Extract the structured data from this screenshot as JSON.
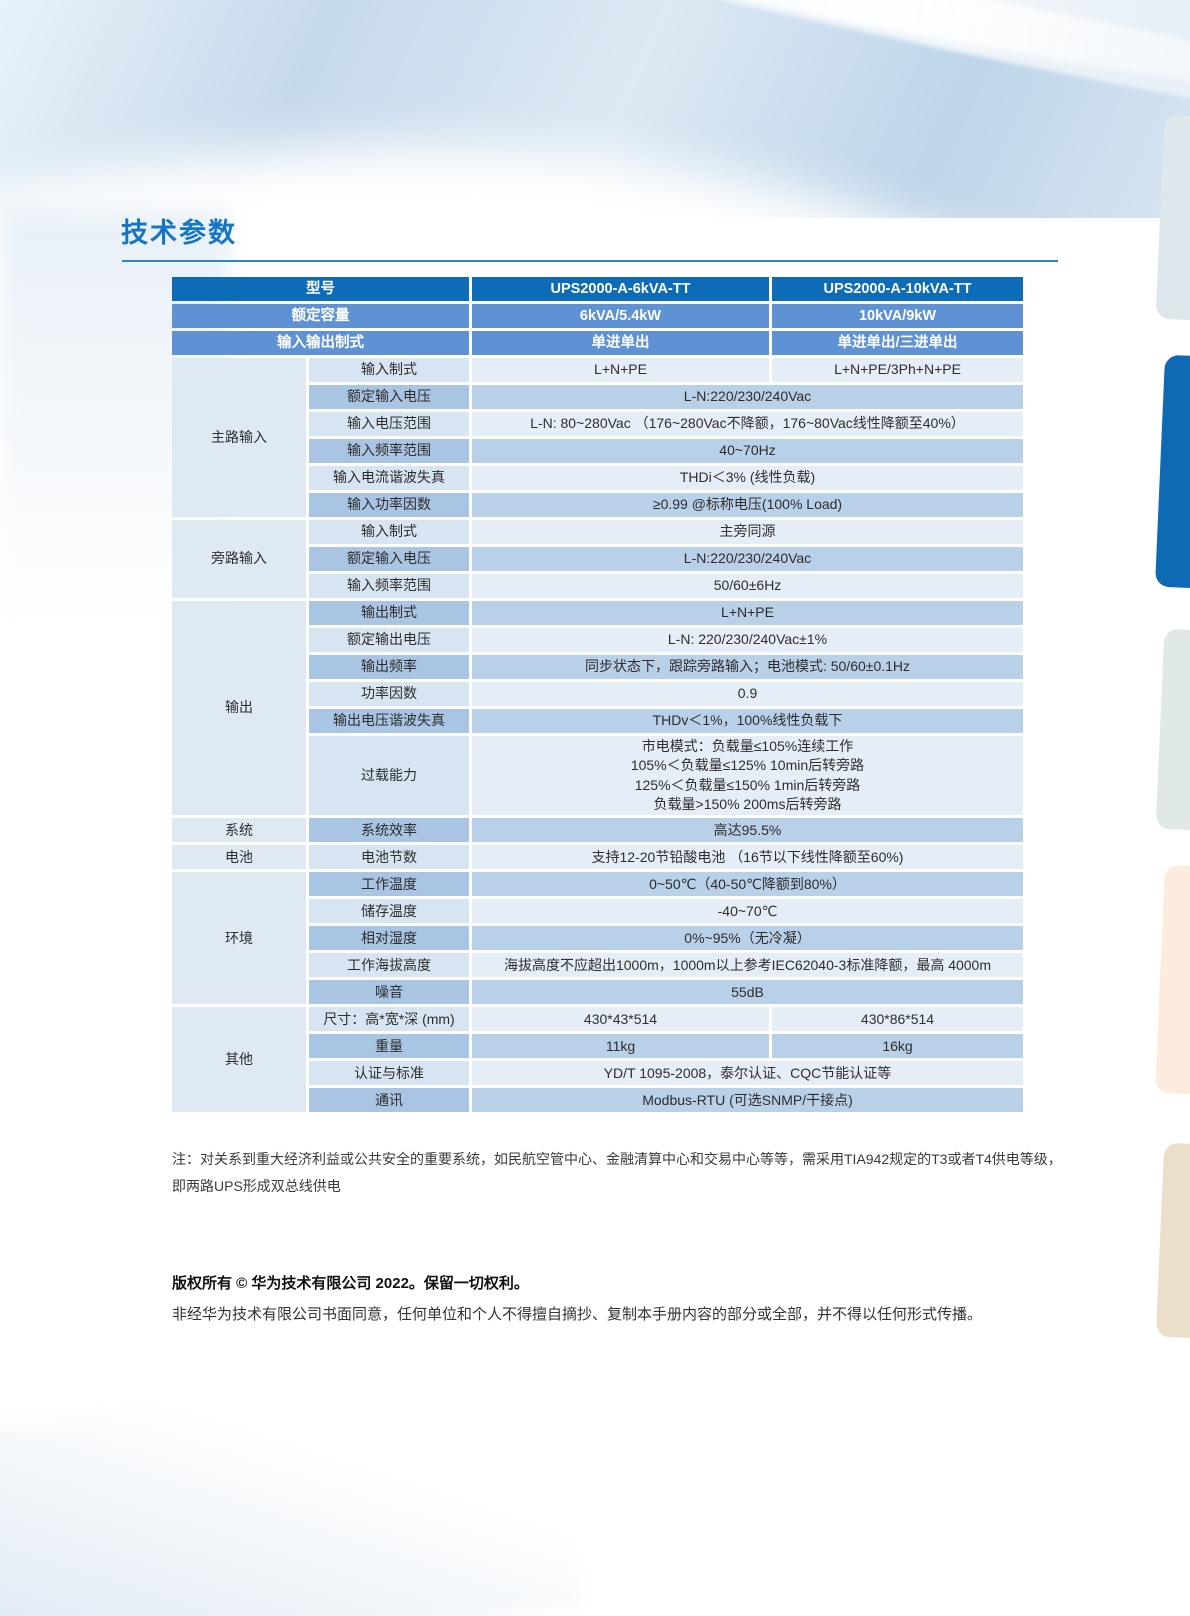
{
  "page": {
    "title": "技术参数",
    "note": "注：对关系到重大经济利益或公共安全的重要系统，如民航空管中心、金融清算中心和交易中心等等，需采用TIA942规定的T3或者T4供电等级，即两路UPS形成双总线供电",
    "copyright_bold": "版权所有 © 华为技术有限公司 2022。保留一切权利。",
    "copyright_text": "非经华为技术有限公司书面同意，任何单位和个人不得擅自摘抄、复制本手册内容的部分或全部，并不得以任何形式传播。"
  },
  "colors": {
    "title_blue": "#1575c5",
    "rule_blue": "#2e86c9",
    "header_row1": "#0e6bb8",
    "header_row23": "#5e92d4",
    "category_cell": "#dfe9f4",
    "param_light": "#d7e5f2",
    "param_dark": "#a9c5e3",
    "value_light": "#e5eef7",
    "value_dark": "#b9d0e9",
    "side_tab_blue": "#0f6ab6",
    "side_tab_gray": "#dee7ec",
    "side_tab_sage": "#e0e9e6",
    "side_tab_peach": "#fcecdd",
    "side_tab_tan": "#ecdfc9"
  },
  "table": {
    "header": [
      {
        "label": "型号",
        "col1": "UPS2000-A-6kVA-TT",
        "col2": "UPS2000-A-10kVA-TT"
      },
      {
        "label": "额定容量",
        "col1": "6kVA/5.4kW",
        "col2": "10kVA/9kW"
      },
      {
        "label": "输入输出制式",
        "col1": "单进单出",
        "col2": "单进单出/三进单出"
      }
    ],
    "sections": [
      {
        "category": "主路输入",
        "rows": [
          {
            "param": "输入制式",
            "values": [
              "L+N+PE",
              "L+N+PE/3Ph+N+PE"
            ]
          },
          {
            "param": "额定输入电压",
            "value": "L-N:220/230/240Vac"
          },
          {
            "param": "输入电压范围",
            "value": "L-N: 80~280Vac （176~280Vac不降额，176~80Vac线性降额至40%）"
          },
          {
            "param": "输入频率范围",
            "value": "40~70Hz"
          },
          {
            "param": "输入电流谐波失真",
            "value": "THDi＜3% (线性负载)"
          },
          {
            "param": "输入功率因数",
            "value": "≥0.99 @标称电压(100% Load)"
          }
        ]
      },
      {
        "category": "旁路输入",
        "rows": [
          {
            "param": "输入制式",
            "value": "主旁同源"
          },
          {
            "param": "额定输入电压",
            "value": "L-N:220/230/240Vac"
          },
          {
            "param": "输入频率范围",
            "value": "50/60±6Hz"
          }
        ]
      },
      {
        "category": "输出",
        "rows": [
          {
            "param": "输出制式",
            "value": "L+N+PE"
          },
          {
            "param": "额定输出电压",
            "value": "L-N: 220/230/240Vac±1%"
          },
          {
            "param": "输出频率",
            "value": "同步状态下，跟踪旁路输入；电池模式: 50/60±0.1Hz"
          },
          {
            "param": "功率因数",
            "value": "0.9"
          },
          {
            "param": "输出电压谐波失真",
            "value": "THDv＜1%，100%线性负载下"
          },
          {
            "param": "过载能力",
            "value_lines": [
              "市电模式：负载量≤105%连续工作",
              "105%＜负载量≤125% 10min后转旁路",
              "125%＜负载量≤150% 1min后转旁路",
              "负载量>150% 200ms后转旁路"
            ]
          }
        ]
      },
      {
        "category": "系统",
        "rows": [
          {
            "param": "系统效率",
            "value": "高达95.5%"
          }
        ]
      },
      {
        "category": "电池",
        "rows": [
          {
            "param": "电池节数",
            "value": "支持12-20节铅酸电池 （16节以下线性降额至60%)"
          }
        ]
      },
      {
        "category": "环境",
        "rows": [
          {
            "param": "工作温度",
            "value": "0~50℃（40-50℃降额到80%）"
          },
          {
            "param": "储存温度",
            "value": "-40~70℃"
          },
          {
            "param": "相对湿度",
            "value": "0%~95%（无冷凝）"
          },
          {
            "param": "工作海拔高度",
            "value": "海拔高度不应超出1000m，1000m以上参考IEC62040-3标准降额，最高 4000m"
          },
          {
            "param": "噪音",
            "value": "55dB"
          }
        ]
      },
      {
        "category": "其他",
        "rows": [
          {
            "param": "尺寸：高*宽*深 (mm)",
            "align": "left",
            "values": [
              "430*43*514",
              "430*86*514"
            ]
          },
          {
            "param": "重量",
            "values": [
              "11kg",
              "16kg"
            ]
          },
          {
            "param": "认证与标准",
            "value": "YD/T 1095-2008，泰尔认证、CQC节能认证等"
          },
          {
            "param": "通讯",
            "value": "Modbus-RTU (可选SNMP/干接点)"
          }
        ]
      }
    ]
  }
}
